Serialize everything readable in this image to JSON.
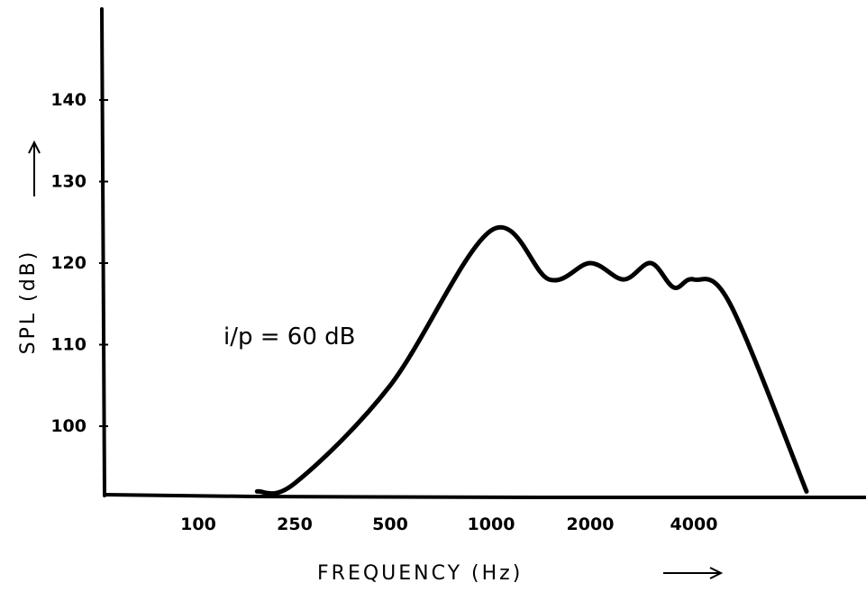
{
  "chart_data": {
    "type": "line",
    "xlabel": "FREQUENCY (Hz)",
    "ylabel": "SPL (dB)",
    "x_ticks": [
      "100",
      "250",
      "500",
      "1000",
      "2000",
      "4000"
    ],
    "y_ticks": [
      "100",
      "110",
      "120",
      "130",
      "140"
    ],
    "annotation": "i/p = 60 dB",
    "series": [
      {
        "x": [
          "175",
          "250",
          "500",
          "1000",
          "1500",
          "2000",
          "2500",
          "3000",
          "3500",
          "4000",
          "5000",
          "8000"
        ],
        "values": [
          92,
          93,
          105,
          124,
          118,
          120,
          118,
          120,
          117,
          118,
          115,
          92
        ]
      }
    ],
    "grid": false
  }
}
